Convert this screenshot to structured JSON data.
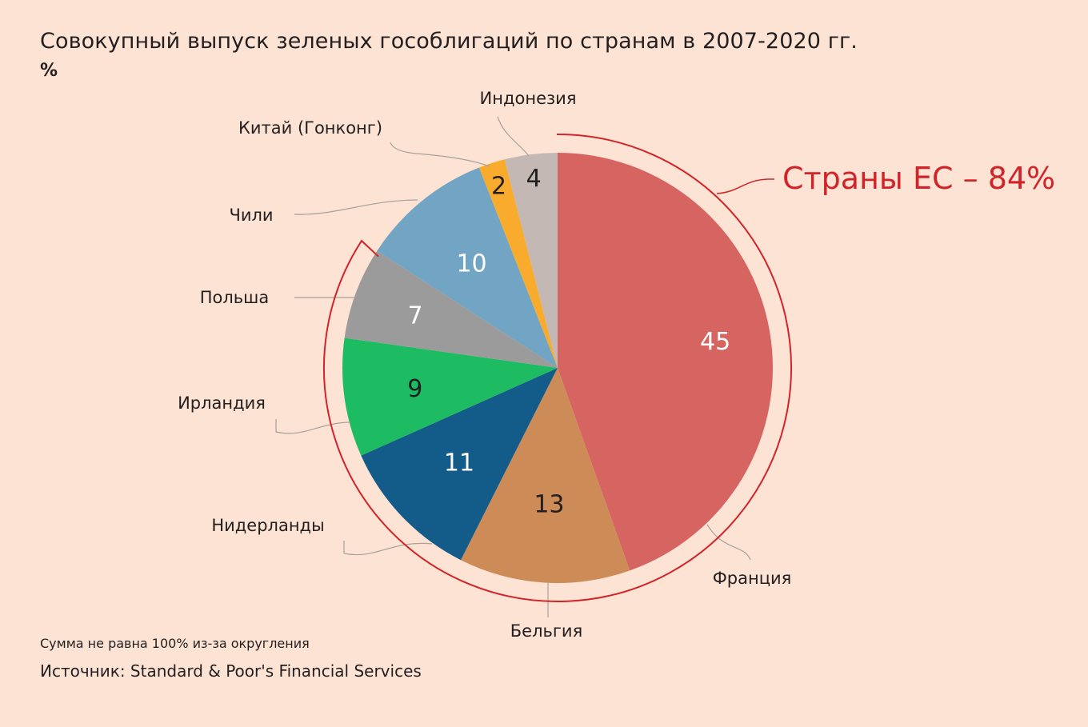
{
  "chart_data": {
    "type": "pie",
    "title": "Совокупный выпуск зеленых гособлигаций по странам в 2007-2020 гг.",
    "unit": "%",
    "slices": [
      {
        "label": "Франция",
        "value": 45,
        "color": "#d66562"
      },
      {
        "label": "Бельгия",
        "value": 13,
        "color": "#cd8b58"
      },
      {
        "label": "Нидерланды",
        "value": 11,
        "color": "#135c89"
      },
      {
        "label": "Ирландия",
        "value": 9,
        "color": "#1dbb62"
      },
      {
        "label": "Польша",
        "value": 7,
        "color": "#9b9b9b"
      },
      {
        "label": "Чили",
        "value": 10,
        "color": "#72a5c3"
      },
      {
        "label": "Китай (Гонконг)",
        "value": 2,
        "color": "#f9ab2e"
      },
      {
        "label": "Индонезия",
        "value": 4,
        "color": "#c3b8b3"
      }
    ],
    "annotation": "Страны ЕС – 84%",
    "annotation_color": "#d1242a"
  },
  "footer": {
    "note": "Сумма не равна 100% из-за округления",
    "source": "Источник: Standard & Poor's Financial Services"
  }
}
